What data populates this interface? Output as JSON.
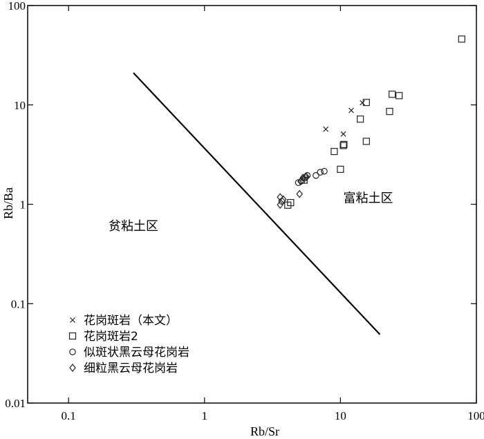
{
  "chart_data": {
    "type": "scatter",
    "xscale": "log",
    "yscale": "log",
    "xlim": [
      0.05,
      100
    ],
    "ylim": [
      0.01,
      100
    ],
    "xlabel": "Rb/Sr",
    "ylabel": "Rb/Ba",
    "x_ticks": [
      0.1,
      1,
      10,
      100
    ],
    "x_tick_labels": [
      "0.1",
      "1",
      "10",
      "100"
    ],
    "y_ticks": [
      0.01,
      0.1,
      1,
      10,
      100
    ],
    "y_tick_labels": [
      "0.01",
      "0.1",
      "1",
      "10",
      "100"
    ],
    "grid": false,
    "legend_position": "bottom-left",
    "divider_line": [
      [
        0.3,
        21
      ],
      [
        19.5,
        0.049
      ]
    ],
    "region_labels": [
      {
        "text": "贫粘土区",
        "x": 0.3,
        "y": 0.55
      },
      {
        "text": "富粘土区",
        "x": 16,
        "y": 1.05
      }
    ],
    "series": [
      {
        "name": "花岗斑岩（本文）",
        "marker": "x",
        "points": [
          [
            7.8,
            5.7
          ],
          [
            10.5,
            5.1
          ],
          [
            12,
            8.8
          ],
          [
            14.5,
            10.5
          ]
        ]
      },
      {
        "name": "花岗斑岩2",
        "marker": "square",
        "points": [
          [
            4.1,
            0.98
          ],
          [
            4.3,
            1.04
          ],
          [
            5.4,
            1.75
          ],
          [
            9,
            3.4
          ],
          [
            10.5,
            3.9
          ],
          [
            10.6,
            4.0
          ],
          [
            10,
            2.25
          ],
          [
            14,
            7.2
          ],
          [
            15.5,
            10.6
          ],
          [
            15.5,
            4.3
          ],
          [
            23,
            8.6
          ],
          [
            24,
            12.8
          ],
          [
            27,
            12.4
          ],
          [
            78,
            46
          ]
        ]
      },
      {
        "name": "似斑状黑云母花岗岩",
        "marker": "circle",
        "points": [
          [
            3.7,
            1.07
          ],
          [
            4.9,
            1.65
          ],
          [
            5.2,
            1.72
          ],
          [
            5.5,
            1.85
          ],
          [
            5.7,
            1.95
          ],
          [
            6.6,
            1.95
          ],
          [
            7.1,
            2.1
          ],
          [
            7.6,
            2.15
          ]
        ]
      },
      {
        "name": "细粒黑云母花岗岩",
        "marker": "diamond",
        "points": [
          [
            3.6,
            0.99
          ],
          [
            3.6,
            1.18
          ],
          [
            3.8,
            1.12
          ],
          [
            5.0,
            1.27
          ],
          [
            5.1,
            1.7
          ],
          [
            5.3,
            1.85
          ],
          [
            5.6,
            1.9
          ]
        ]
      }
    ]
  }
}
